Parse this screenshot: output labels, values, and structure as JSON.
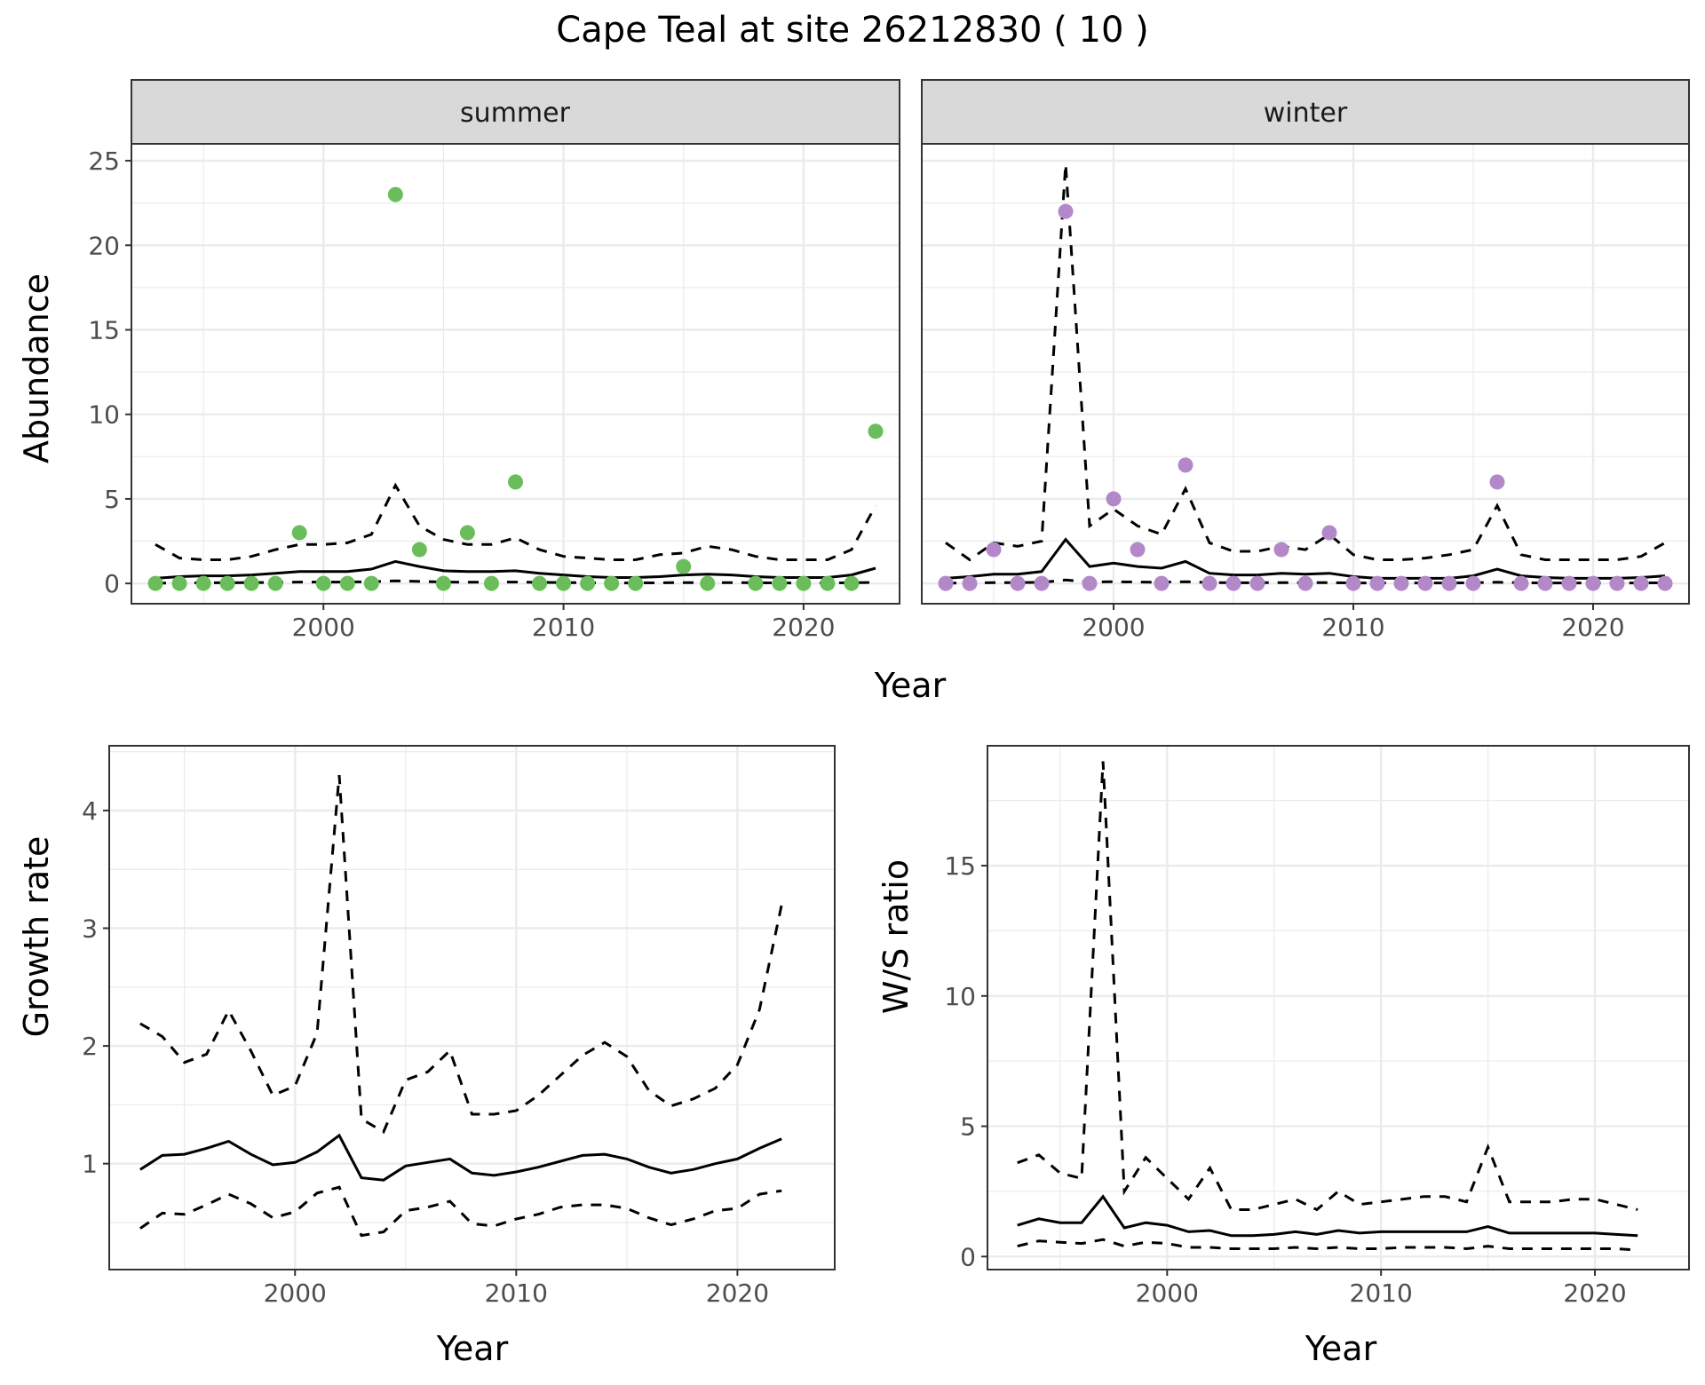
{
  "figure": {
    "title": "Cape Teal at site 26212830 ( 10 )"
  },
  "colors": {
    "summer_points": "#6ABD5B",
    "winter_points": "#B388C8",
    "lines": "#000000",
    "strip_fill": "#D9D9D9",
    "grid": "#EBEBEB"
  },
  "chart_data": [
    {
      "id": "abundance",
      "type": "scatter",
      "ylabel": "Abundance",
      "xlabel": "Year",
      "xlim": [
        1992,
        2024
      ],
      "ylim": [
        -1.2,
        26
      ],
      "x_ticks": [
        2000,
        2010,
        2020
      ],
      "y_ticks": [
        0,
        5,
        10,
        15,
        20,
        25
      ],
      "grid": true,
      "panels": [
        {
          "strip": "summer",
          "points": {
            "name": "counts",
            "x": [
              1993,
              1994,
              1995,
              1996,
              1997,
              1998,
              1999,
              2000,
              2001,
              2002,
              2003,
              2004,
              2005,
              2006,
              2007,
              2008,
              2009,
              2010,
              2011,
              2012,
              2013,
              2015,
              2016,
              2018,
              2019,
              2020,
              2021,
              2022,
              2023
            ],
            "y": [
              0,
              0,
              0,
              0,
              0,
              0,
              3,
              0,
              0,
              0,
              23,
              2,
              0,
              3,
              0,
              6,
              0,
              0,
              0,
              0,
              0,
              1,
              0,
              0,
              0,
              0,
              0,
              0,
              9
            ]
          },
          "years": [
            1993,
            1994,
            1995,
            1996,
            1997,
            1998,
            1999,
            2000,
            2001,
            2002,
            2003,
            2004,
            2005,
            2006,
            2007,
            2008,
            2009,
            2010,
            2011,
            2012,
            2013,
            2014,
            2015,
            2016,
            2017,
            2018,
            2019,
            2020,
            2021,
            2022,
            2023
          ],
          "mean": [
            0.3,
            0.4,
            0.45,
            0.45,
            0.5,
            0.6,
            0.7,
            0.7,
            0.7,
            0.85,
            1.3,
            1.0,
            0.75,
            0.7,
            0.7,
            0.75,
            0.6,
            0.5,
            0.4,
            0.35,
            0.35,
            0.4,
            0.5,
            0.55,
            0.5,
            0.4,
            0.35,
            0.35,
            0.35,
            0.5,
            0.9
          ],
          "upper": [
            2.3,
            1.5,
            1.4,
            1.4,
            1.6,
            2.0,
            2.3,
            2.3,
            2.4,
            2.9,
            5.8,
            3.4,
            2.6,
            2.3,
            2.3,
            2.7,
            2.0,
            1.6,
            1.5,
            1.4,
            1.4,
            1.7,
            1.8,
            2.2,
            2.0,
            1.6,
            1.4,
            1.4,
            1.4,
            2.0,
            4.6
          ],
          "lower": [
            0.02,
            0.03,
            0.04,
            0.04,
            0.05,
            0.06,
            0.08,
            0.08,
            0.08,
            0.1,
            0.15,
            0.12,
            0.08,
            0.07,
            0.07,
            0.08,
            0.06,
            0.05,
            0.04,
            0.03,
            0.03,
            0.04,
            0.05,
            0.05,
            0.05,
            0.04,
            0.03,
            0.03,
            0.03,
            0.04,
            0.06
          ]
        },
        {
          "strip": "winter",
          "points": {
            "name": "counts",
            "x": [
              1993,
              1994,
              1995,
              1996,
              1997,
              1998,
              1999,
              2000,
              2001,
              2002,
              2003,
              2004,
              2005,
              2006,
              2007,
              2008,
              2009,
              2010,
              2011,
              2012,
              2013,
              2014,
              2015,
              2016,
              2017,
              2018,
              2019,
              2020,
              2021,
              2022,
              2023
            ],
            "y": [
              0,
              0,
              2,
              0,
              0,
              22,
              0,
              5,
              2,
              0,
              7,
              0,
              0,
              0,
              2,
              0,
              3,
              0,
              0,
              0,
              0,
              0,
              0,
              6,
              0,
              0,
              0,
              0,
              0,
              0,
              0
            ]
          },
          "years": [
            1993,
            1994,
            1995,
            1996,
            1997,
            1998,
            1999,
            2000,
            2001,
            2002,
            2003,
            2004,
            2005,
            2006,
            2007,
            2008,
            2009,
            2010,
            2011,
            2012,
            2013,
            2014,
            2015,
            2016,
            2017,
            2018,
            2019,
            2020,
            2021,
            2022,
            2023
          ],
          "mean": [
            0.3,
            0.4,
            0.55,
            0.55,
            0.7,
            2.6,
            1.0,
            1.2,
            1.0,
            0.9,
            1.3,
            0.6,
            0.5,
            0.5,
            0.6,
            0.55,
            0.6,
            0.4,
            0.3,
            0.3,
            0.3,
            0.3,
            0.45,
            0.85,
            0.45,
            0.35,
            0.3,
            0.3,
            0.3,
            0.35,
            0.45
          ],
          "upper": [
            2.4,
            1.4,
            2.4,
            2.2,
            2.5,
            24.8,
            3.4,
            4.4,
            3.4,
            2.9,
            5.6,
            2.4,
            1.9,
            1.9,
            2.2,
            2.0,
            2.9,
            1.7,
            1.4,
            1.4,
            1.5,
            1.7,
            2.0,
            4.6,
            1.7,
            1.4,
            1.4,
            1.4,
            1.4,
            1.6,
            2.4
          ],
          "lower": [
            0.02,
            0.03,
            0.05,
            0.05,
            0.06,
            0.2,
            0.08,
            0.1,
            0.08,
            0.07,
            0.1,
            0.05,
            0.04,
            0.04,
            0.05,
            0.04,
            0.05,
            0.03,
            0.03,
            0.03,
            0.03,
            0.03,
            0.04,
            0.07,
            0.04,
            0.03,
            0.03,
            0.03,
            0.03,
            0.03,
            0.04
          ]
        }
      ]
    },
    {
      "id": "growth",
      "type": "line",
      "ylabel": "Growth rate",
      "xlabel": "Year",
      "xlim": [
        1991.6,
        2024.4
      ],
      "ylim": [
        0.1,
        4.55
      ],
      "x_ticks": [
        2000,
        2010,
        2020
      ],
      "y_ticks": [
        1,
        2,
        3,
        4
      ],
      "grid": true,
      "years": [
        1993,
        1994,
        1995,
        1996,
        1997,
        1998,
        1999,
        2000,
        2001,
        2002,
        2003,
        2004,
        2005,
        2006,
        2007,
        2008,
        2009,
        2010,
        2011,
        2012,
        2013,
        2014,
        2015,
        2016,
        2017,
        2018,
        2019,
        2020,
        2021,
        2022
      ],
      "mean": [
        0.95,
        1.07,
        1.08,
        1.13,
        1.19,
        1.08,
        0.99,
        1.01,
        1.1,
        1.24,
        0.88,
        0.86,
        0.98,
        1.01,
        1.04,
        0.92,
        0.9,
        0.93,
        0.97,
        1.02,
        1.07,
        1.08,
        1.04,
        0.97,
        0.92,
        0.95,
        1.0,
        1.04,
        1.13,
        1.21
      ],
      "upper": [
        2.19,
        2.08,
        1.86,
        1.93,
        2.3,
        1.96,
        1.58,
        1.66,
        2.11,
        4.3,
        1.38,
        1.27,
        1.71,
        1.78,
        1.96,
        1.42,
        1.42,
        1.45,
        1.58,
        1.75,
        1.92,
        2.03,
        1.91,
        1.62,
        1.49,
        1.55,
        1.64,
        1.84,
        2.31,
        3.2
      ],
      "lower": [
        0.45,
        0.58,
        0.57,
        0.65,
        0.74,
        0.66,
        0.54,
        0.59,
        0.75,
        0.8,
        0.39,
        0.42,
        0.6,
        0.63,
        0.68,
        0.49,
        0.47,
        0.53,
        0.57,
        0.63,
        0.65,
        0.65,
        0.62,
        0.54,
        0.48,
        0.53,
        0.6,
        0.62,
        0.74,
        0.77
      ]
    },
    {
      "id": "ratio",
      "type": "line",
      "ylabel": "W/S ratio",
      "xlabel": "Year",
      "xlim": [
        1991.6,
        2024.4
      ],
      "ylim": [
        -0.5,
        19.6
      ],
      "x_ticks": [
        2000,
        2010,
        2020
      ],
      "y_ticks": [
        0,
        5,
        10,
        15
      ],
      "grid": true,
      "years": [
        1993,
        1994,
        1995,
        1996,
        1997,
        1998,
        1999,
        2000,
        2001,
        2002,
        2003,
        2004,
        2005,
        2006,
        2007,
        2008,
        2009,
        2010,
        2011,
        2012,
        2013,
        2014,
        2015,
        2016,
        2017,
        2018,
        2019,
        2020,
        2021,
        2022
      ],
      "mean": [
        1.2,
        1.45,
        1.3,
        1.3,
        2.3,
        1.1,
        1.3,
        1.2,
        0.95,
        1.0,
        0.8,
        0.8,
        0.85,
        0.95,
        0.85,
        1.0,
        0.9,
        0.95,
        0.95,
        0.95,
        0.95,
        0.95,
        1.15,
        0.9,
        0.9,
        0.9,
        0.9,
        0.9,
        0.85,
        0.8
      ],
      "upper": [
        3.6,
        3.9,
        3.2,
        3.0,
        19.0,
        2.5,
        3.8,
        3.0,
        2.2,
        3.4,
        1.8,
        1.8,
        2.0,
        2.2,
        1.8,
        2.5,
        2.0,
        2.1,
        2.2,
        2.3,
        2.3,
        2.1,
        4.2,
        2.1,
        2.1,
        2.1,
        2.2,
        2.2,
        2.0,
        1.8
      ],
      "lower": [
        0.4,
        0.6,
        0.55,
        0.5,
        0.65,
        0.4,
        0.55,
        0.5,
        0.35,
        0.35,
        0.3,
        0.3,
        0.3,
        0.35,
        0.3,
        0.35,
        0.3,
        0.3,
        0.35,
        0.35,
        0.35,
        0.3,
        0.4,
        0.3,
        0.3,
        0.3,
        0.3,
        0.3,
        0.3,
        0.25
      ]
    }
  ]
}
